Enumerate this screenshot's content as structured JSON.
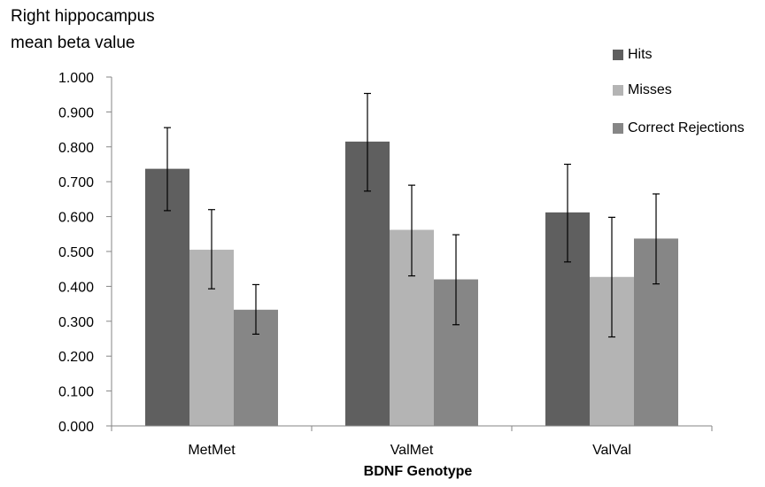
{
  "chart_data": {
    "type": "bar",
    "ylabel_lines": [
      "Right hippocampus",
      "mean beta value"
    ],
    "xlabel": "BDNF Genotype",
    "categories": [
      "MetMet",
      "ValMet",
      "ValVal"
    ],
    "ylim": [
      0,
      1
    ],
    "yticks": [
      "0.000",
      "0.100",
      "0.200",
      "0.300",
      "0.400",
      "0.500",
      "0.600",
      "0.700",
      "0.800",
      "0.900",
      "1.000"
    ],
    "legend_position": "top-right",
    "grid": false,
    "error_bars": true,
    "series": [
      {
        "name": "Hits",
        "color": "#5f5f5f",
        "values": [
          0.737,
          0.815,
          0.612
        ],
        "err_low": [
          0.617,
          0.673,
          0.47
        ],
        "err_high": [
          0.855,
          0.953,
          0.75
        ]
      },
      {
        "name": "Misses",
        "color": "#b4b4b4",
        "values": [
          0.505,
          0.562,
          0.427
        ],
        "err_low": [
          0.393,
          0.43,
          0.255
        ],
        "err_high": [
          0.62,
          0.69,
          0.598
        ]
      },
      {
        "name": "Correct Rejections",
        "color": "#868686",
        "values": [
          0.333,
          0.42,
          0.537
        ],
        "err_low": [
          0.263,
          0.29,
          0.407
        ],
        "err_high": [
          0.405,
          0.548,
          0.665
        ]
      }
    ]
  }
}
